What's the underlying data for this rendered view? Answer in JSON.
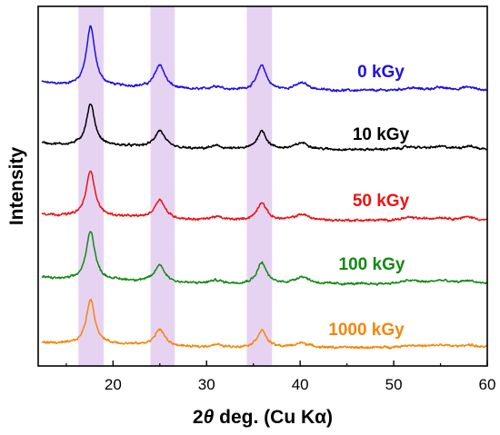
{
  "chart_data": {
    "type": "line",
    "title": "",
    "xlabel": "2θ deg. (Cu Kα)",
    "xlabel_parts": {
      "var": "2",
      "theta": "θ",
      "rest": " deg. (Cu Kα)"
    },
    "ylabel": "Intensity",
    "xlim": [
      12,
      60
    ],
    "x_ticks": [
      20,
      30,
      40,
      50,
      60
    ],
    "y_ticks_shown": false,
    "grid": false,
    "legend": "inline labels right of each trace",
    "highlight_bands": [
      {
        "x_range": [
          16.3,
          19.0
        ],
        "color": "#e6d3f2"
      },
      {
        "x_range": [
          24.0,
          26.6
        ],
        "color": "#e6d3f2"
      },
      {
        "x_range": [
          34.3,
          37.0
        ],
        "color": "#e6d3f2"
      }
    ],
    "peaks": [
      {
        "center": 17.6,
        "width": 0.55
      },
      {
        "center": 25.0,
        "width": 0.65
      },
      {
        "center": 31.0,
        "width": 0.8
      },
      {
        "center": 35.9,
        "width": 0.6
      },
      {
        "center": 40.2,
        "width": 0.9
      },
      {
        "center": 51.8,
        "width": 1.2
      },
      {
        "center": 55.0,
        "width": 1.2
      },
      {
        "center": 58.0,
        "width": 0.9
      }
    ],
    "series": [
      {
        "name": "0 kGy",
        "color": "#1f10e6",
        "baseline": 0.55,
        "heights": [
          9.0,
          3.6,
          0.6,
          3.8,
          1.1,
          0.35,
          0.4,
          0.5
        ]
      },
      {
        "name": "10 kGy",
        "color": "#000000",
        "baseline": 0.45,
        "heights": [
          6.3,
          2.6,
          0.5,
          2.8,
          1.0,
          0.4,
          0.4,
          0.5
        ]
      },
      {
        "name": "50 kGy",
        "color": "#ee1111",
        "baseline": 0.45,
        "heights": [
          7.0,
          2.9,
          0.5,
          2.7,
          0.9,
          0.4,
          0.4,
          0.5
        ]
      },
      {
        "name": "100 kGy",
        "color": "#128a12",
        "baseline": 0.45,
        "heights": [
          7.5,
          2.6,
          0.5,
          3.2,
          1.1,
          0.5,
          0.5,
          0.5
        ]
      },
      {
        "name": "1000 kGy",
        "color": "#f5860a",
        "baseline": 0.35,
        "heights": [
          6.8,
          2.5,
          0.4,
          2.6,
          0.7,
          0.35,
          0.35,
          0.4
        ]
      }
    ]
  }
}
